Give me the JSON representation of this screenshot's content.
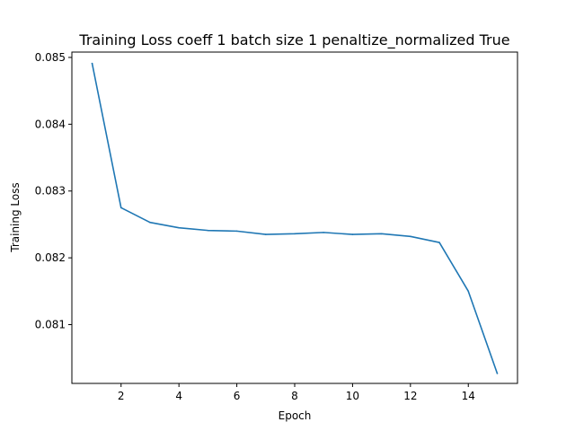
{
  "chart_data": {
    "type": "line",
    "title": "Training Loss coeff 1 batch size 1 penaltize_normalized True",
    "xlabel": "Epoch",
    "ylabel": "Training Loss",
    "xlim": [
      0.3,
      15.7
    ],
    "ylim": [
      0.08012,
      0.08508
    ],
    "xticks": [
      2,
      4,
      6,
      8,
      10,
      12,
      14
    ],
    "xtick_labels": [
      "2",
      "4",
      "6",
      "8",
      "10",
      "12",
      "14"
    ],
    "yticks": [
      0.081,
      0.082,
      0.083,
      0.084,
      0.085
    ],
    "ytick_labels": [
      "0.081",
      "0.082",
      "0.083",
      "0.084",
      "0.085"
    ],
    "grid": false,
    "legend": "none",
    "series": [
      {
        "color": "#1f77b4",
        "x": [
          1,
          2,
          3,
          4,
          5,
          6,
          7,
          8,
          9,
          10,
          11,
          12,
          13,
          14,
          15
        ],
        "y": [
          0.08491,
          0.08275,
          0.08253,
          0.08245,
          0.08241,
          0.0824,
          0.08235,
          0.08236,
          0.08238,
          0.08235,
          0.08236,
          0.08232,
          0.08223,
          0.0815,
          0.08027
        ]
      }
    ]
  }
}
